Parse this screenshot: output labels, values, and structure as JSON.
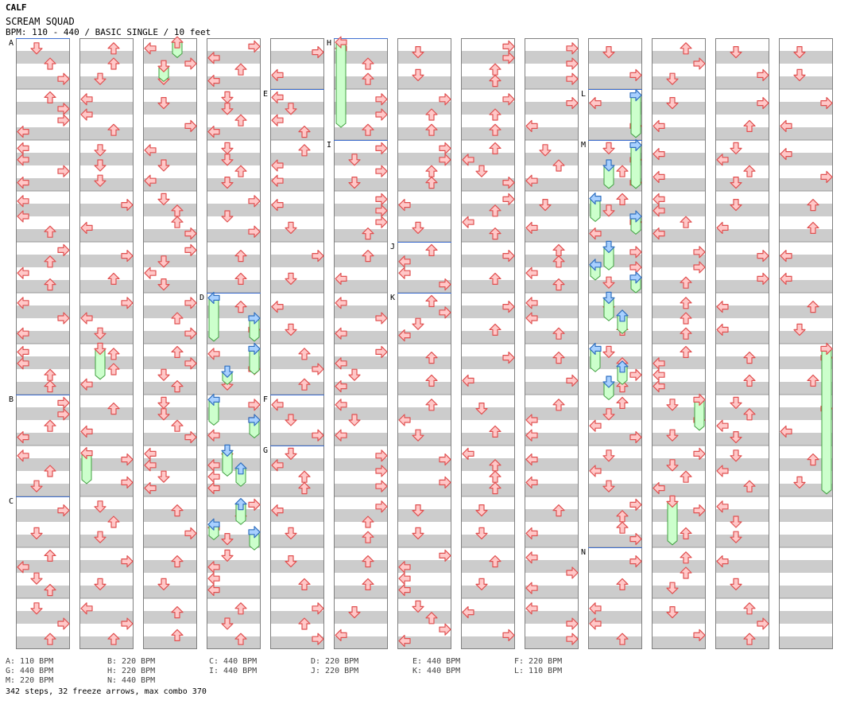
{
  "header": {
    "title": "CALF",
    "song": "SCREAM SQUAD",
    "info": "BPM: 110 - 440 / BASIC SINGLE / 10 feet"
  },
  "colors": {
    "stripe": "#cccccc",
    "border": "#808080",
    "arrow_fill": "#ffc8c8",
    "arrow_stroke": "#e05050",
    "blue_fill": "#a8d0ff",
    "blue_stroke": "#3070c0",
    "freeze_fill": "#ccffcc",
    "freeze_stroke": "#40a040",
    "marker_line": "#4070d0"
  },
  "bpm_markers": [
    {
      "label": "A",
      "col": 0,
      "measure": 0
    },
    {
      "label": "B",
      "col": 0,
      "measure": 7
    },
    {
      "label": "C",
      "col": 0,
      "measure": 9
    },
    {
      "label": "D",
      "col": 3,
      "measure": 5
    },
    {
      "label": "E",
      "col": 4,
      "measure": 1
    },
    {
      "label": "F",
      "col": 4,
      "measure": 7
    },
    {
      "label": "G",
      "col": 4,
      "measure": 8
    },
    {
      "label": "H",
      "col": 5,
      "measure": 0
    },
    {
      "label": "I",
      "col": 5,
      "measure": 2
    },
    {
      "label": "J",
      "col": 6,
      "measure": 4
    },
    {
      "label": "K",
      "col": 6,
      "measure": 5
    },
    {
      "label": "L",
      "col": 9,
      "measure": 1
    },
    {
      "label": "M",
      "col": 9,
      "measure": 2
    },
    {
      "label": "N",
      "col": 9,
      "measure": 10
    }
  ],
  "legend": [
    "A: 110 BPM",
    "B: 220 BPM",
    "C: 440 BPM",
    "D: 220 BPM",
    "E: 440 BPM",
    "F: 220 BPM",
    "G: 440 BPM",
    "H: 220 BPM",
    "I: 440 BPM",
    "J: 220 BPM",
    "K: 440 BPM",
    "L: 110 BPM",
    "M: 220 BPM",
    "N: 440 BPM"
  ],
  "footer": "342 steps, 32 freeze arrows, max combo 370",
  "freezes": [
    {
      "col": 2,
      "lane": 2,
      "m0": 0,
      "r0": 0.08,
      "m1": 0,
      "r1": 0.38
    },
    {
      "col": 2,
      "lane": 1,
      "m0": 0,
      "r0": 0.55,
      "m1": 0,
      "r1": 0.85
    },
    {
      "col": 5,
      "lane": 0,
      "m0": 0,
      "r0": 0.08,
      "m1": 1,
      "r1": 0.75
    },
    {
      "col": 1,
      "lane": 1,
      "m0": 6,
      "r0": 0.1,
      "m1": 6,
      "r1": 0.7
    },
    {
      "col": 1,
      "lane": 0,
      "m0": 8,
      "r0": 0.15,
      "m1": 8,
      "r1": 0.75
    },
    {
      "col": 3,
      "lane": 0,
      "m0": 5,
      "r0": 0.1,
      "m1": 5,
      "r1": 0.95
    },
    {
      "col": 3,
      "lane": 3,
      "m0": 5,
      "r0": 0.5,
      "m1": 5,
      "r1": 0.95
    },
    {
      "col": 3,
      "lane": 3,
      "m0": 6,
      "r0": 0.1,
      "m1": 6,
      "r1": 0.6
    },
    {
      "col": 3,
      "lane": 1,
      "m0": 6,
      "r0": 0.55,
      "m1": 6,
      "r1": 0.8
    },
    {
      "col": 3,
      "lane": 0,
      "m0": 7,
      "r0": 0.1,
      "m1": 7,
      "r1": 0.6
    },
    {
      "col": 3,
      "lane": 3,
      "m0": 7,
      "r0": 0.5,
      "m1": 7,
      "r1": 0.85
    },
    {
      "col": 3,
      "lane": 1,
      "m0": 8,
      "r0": 0.1,
      "m1": 8,
      "r1": 0.6
    },
    {
      "col": 3,
      "lane": 2,
      "m0": 8,
      "r0": 0.45,
      "m1": 8,
      "r1": 0.8
    },
    {
      "col": 3,
      "lane": 2,
      "m0": 9,
      "r0": 0.15,
      "m1": 9,
      "r1": 0.55
    },
    {
      "col": 3,
      "lane": 0,
      "m0": 9,
      "r0": 0.55,
      "m1": 9,
      "r1": 0.85
    },
    {
      "col": 3,
      "lane": 3,
      "m0": 9,
      "r0": 0.7,
      "m1": 9,
      "r1": 1.05
    },
    {
      "col": 9,
      "lane": 3,
      "m0": 1,
      "r0": 0.12,
      "m1": 1,
      "r1": 0.95
    },
    {
      "col": 9,
      "lane": 3,
      "m0": 2,
      "r0": 0.1,
      "m1": 2,
      "r1": 0.95
    },
    {
      "col": 9,
      "lane": 1,
      "m0": 2,
      "r0": 0.5,
      "m1": 2,
      "r1": 0.95
    },
    {
      "col": 9,
      "lane": 0,
      "m0": 3,
      "r0": 0.15,
      "m1": 3,
      "r1": 0.6
    },
    {
      "col": 9,
      "lane": 3,
      "m0": 3,
      "r0": 0.5,
      "m1": 3,
      "r1": 0.85
    },
    {
      "col": 9,
      "lane": 1,
      "m0": 4,
      "r0": 0.1,
      "m1": 4,
      "r1": 0.55
    },
    {
      "col": 9,
      "lane": 0,
      "m0": 4,
      "r0": 0.45,
      "m1": 4,
      "r1": 0.75
    },
    {
      "col": 9,
      "lane": 3,
      "m0": 4,
      "r0": 0.7,
      "m1": 4,
      "r1": 1.0
    },
    {
      "col": 9,
      "lane": 1,
      "m0": 5,
      "r0": 0.1,
      "m1": 5,
      "r1": 0.55
    },
    {
      "col": 9,
      "lane": 2,
      "m0": 5,
      "r0": 0.45,
      "m1": 5,
      "r1": 0.8
    },
    {
      "col": 9,
      "lane": 0,
      "m0": 6,
      "r0": 0.1,
      "m1": 6,
      "r1": 0.55
    },
    {
      "col": 9,
      "lane": 2,
      "m0": 6,
      "r0": 0.45,
      "m1": 6,
      "r1": 0.8
    },
    {
      "col": 9,
      "lane": 1,
      "m0": 6,
      "r0": 0.75,
      "m1": 7,
      "r1": 0.1
    },
    {
      "col": 10,
      "lane": 3,
      "m0": 7,
      "r0": 0.1,
      "m1": 7,
      "r1": 0.7
    },
    {
      "col": 10,
      "lane": 1,
      "m0": 9,
      "r0": 0.1,
      "m1": 9,
      "r1": 0.95
    },
    {
      "col": 12,
      "lane": 3,
      "m0": 6,
      "r0": 0.1,
      "m1": 8,
      "r1": 0.95
    }
  ]
}
